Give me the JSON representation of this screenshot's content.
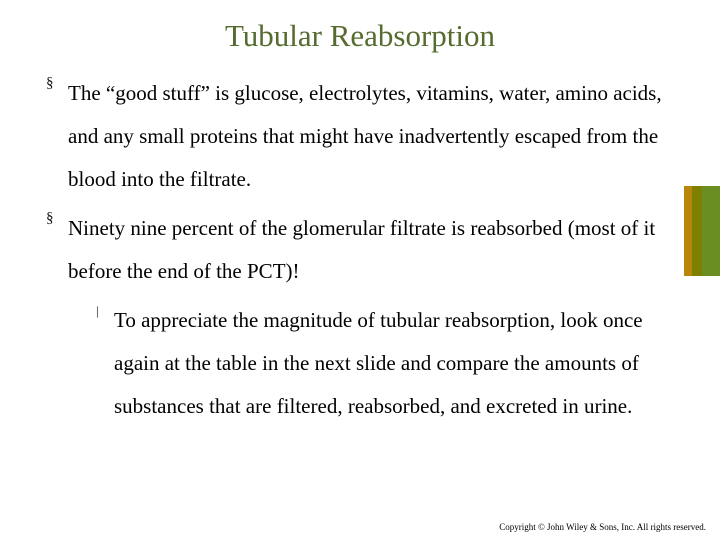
{
  "title": {
    "text": "Tubular Reabsorption",
    "color": "#556b2f",
    "fontsize": 31
  },
  "body": {
    "color": "#000000",
    "fontsize": 21,
    "line_height": 2.05
  },
  "bullets": [
    {
      "text": "The “good stuff” is glucose, electrolytes, vitamins, water, amino acids, and any small proteins that might have inadvertently escaped from the blood into the filtrate."
    },
    {
      "text": "Ninety nine percent of the glomerular filtrate is reabsorbed (most of it before the end of the PCT)!",
      "sub": [
        "To appreciate the magnitude of tubular reabsorption, look once again at the table in the next slide and compare the amounts of substances that are filtered, reabsorbed, and excreted in urine."
      ]
    }
  ],
  "copyright": {
    "text": "Copyright © John Wiley & Sons, Inc. All rights reserved.",
    "fontsize": 9,
    "color": "#000000"
  },
  "stripe": {
    "colors": [
      "#6b8e23",
      "#808000",
      "#b8860b"
    ]
  }
}
